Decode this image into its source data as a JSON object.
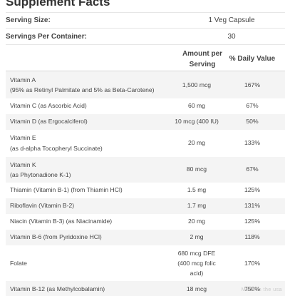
{
  "title": "Supplement Facts",
  "serving_size": {
    "label": "Serving Size:",
    "value": "1 Veg Capsule"
  },
  "servings_per_container": {
    "label": "Servings Per Container:",
    "value": "30"
  },
  "columns": {
    "amount": "Amount per Serving",
    "daily_value": "% Daily Value"
  },
  "rows": [
    {
      "name": "Vitamin A",
      "subname": "(95% as Retinyl Palmitate and 5% as Beta-Carotene)",
      "amount": "1,500 mcg",
      "dv": "167%"
    },
    {
      "name": "Vitamin C (as Ascorbic Acid)",
      "amount": "60 mg",
      "dv": "67%"
    },
    {
      "name": "Vitamin D (as Ergocalciferol)",
      "amount": "10 mcg (400 IU)",
      "dv": "50%"
    },
    {
      "name": "Vitamin E",
      "subname": "(as d-alpha Tocopheryl Succinate)",
      "amount": "20 mg",
      "dv": "133%"
    },
    {
      "name": "Vitamin K",
      "subname": "(as Phytonadione K-1)",
      "amount": "80 mcg",
      "dv": "67%"
    },
    {
      "name": "Thiamin (Vitamin B-1) (from Thiamin HCl)",
      "amount": "1.5 mg",
      "dv": "125%"
    },
    {
      "name": "Riboflavin (Vitamin B-2)",
      "amount": "1.7 mg",
      "dv": "131%"
    },
    {
      "name": "Niacin (Vitamin B-3) (as Niacinamide)",
      "amount": "20 mg",
      "dv": "125%"
    },
    {
      "name": "Vitamin B-6 (from Pyridoxine HCl)",
      "amount": "2 mg",
      "dv": "118%"
    },
    {
      "name": "Folate",
      "amount_lines": [
        "680 mcg DFE",
        "(400 mcg folic",
        "acid)"
      ],
      "dv": "170%"
    },
    {
      "name": "Vitamin B-12 (as Methylcobalamin)",
      "amount": "18 mcg",
      "dv": "750%"
    }
  ],
  "watermark": "Made in the usa"
}
